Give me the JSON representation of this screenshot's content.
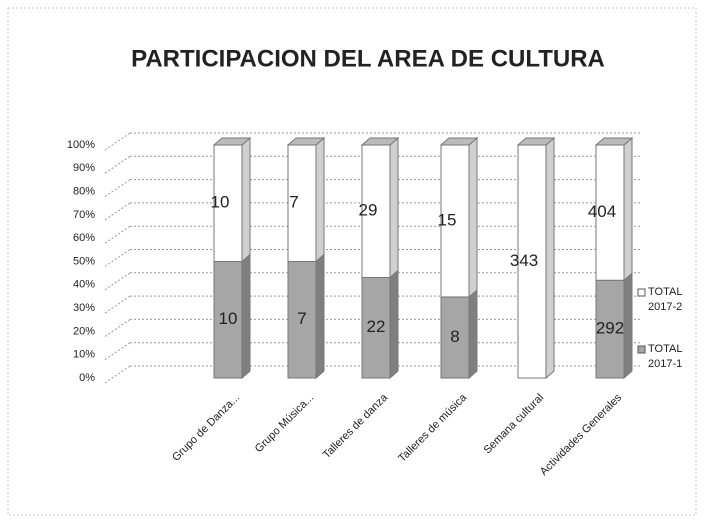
{
  "chart_data": {
    "type": "bar",
    "stacked": "percent",
    "title": "PARTICIPACION DEL  AREA DE CULTURA",
    "categories": [
      "Grupo de Danza...",
      "Grupo Música...",
      "Talleres de danza",
      "Talleres de música",
      "Semana cultural",
      "Actividades Generales"
    ],
    "series": [
      {
        "name": "TOTAL 2017-1",
        "color": "#a6a6a6",
        "values": [
          10,
          7,
          22,
          8,
          null,
          292
        ]
      },
      {
        "name": "TOTAL 2017-2",
        "color": "#ffffff",
        "values": [
          10,
          7,
          29,
          15,
          343,
          404
        ]
      }
    ],
    "ylim": [
      0,
      100
    ],
    "yticks": [
      {
        "value": 0,
        "label": "0%"
      },
      {
        "value": 10,
        "label": "10%"
      },
      {
        "value": 20,
        "label": "20%"
      },
      {
        "value": 30,
        "label": "30%"
      },
      {
        "value": 40,
        "label": "40%"
      },
      {
        "value": 50,
        "label": "50%"
      },
      {
        "value": 60,
        "label": "60%"
      },
      {
        "value": 70,
        "label": "70%"
      },
      {
        "value": 80,
        "label": "80%"
      },
      {
        "value": 90,
        "label": "90%"
      },
      {
        "value": 100,
        "label": "100%"
      }
    ],
    "grid": true,
    "legend": "right"
  }
}
